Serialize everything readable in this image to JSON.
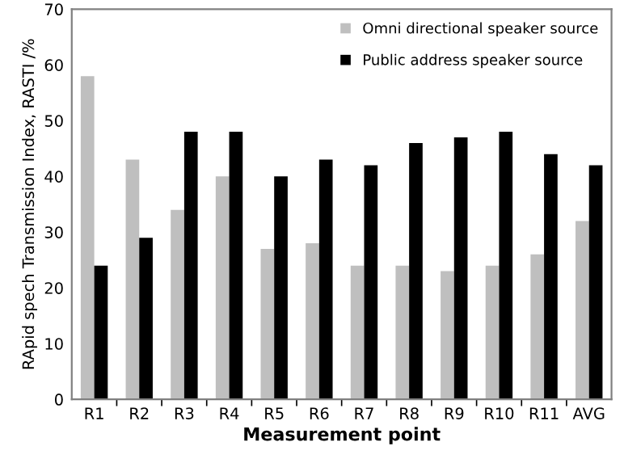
{
  "chart_data": {
    "type": "bar",
    "xlabel": "Measurement point",
    "ylabel": "RApid spech Transmission Index, RASTI /%",
    "categories": [
      "R1",
      "R2",
      "R3",
      "R4",
      "R5",
      "R6",
      "R7",
      "R8",
      "R9",
      "R10",
      "R11",
      "AVG"
    ],
    "series": [
      {
        "name": "Omni directional speaker source",
        "color": "#bfbfbf",
        "values": [
          58,
          43,
          34,
          40,
          27,
          28,
          24,
          24,
          23,
          24,
          26,
          32
        ]
      },
      {
        "name": "Public address speaker source",
        "color": "#000000",
        "values": [
          24,
          29,
          48,
          48,
          40,
          43,
          42,
          46,
          47,
          48,
          44,
          42
        ]
      }
    ],
    "ylim": [
      0,
      70
    ],
    "yticks": [
      0,
      10,
      20,
      30,
      40,
      50,
      60,
      70
    ],
    "grid": false,
    "legend": "top right"
  }
}
